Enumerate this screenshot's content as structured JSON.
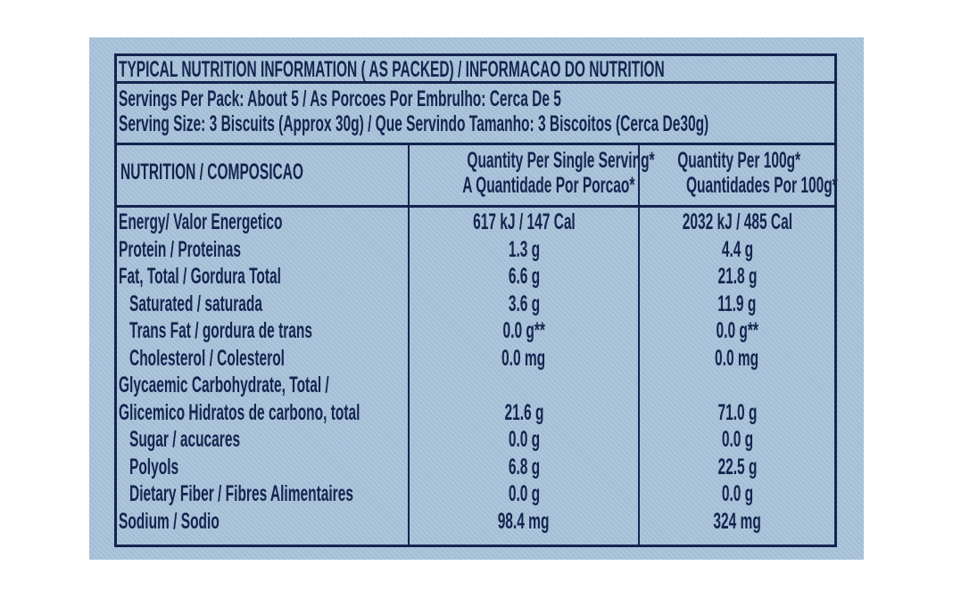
{
  "title": "TYPICAL NUTRITION INFORMATION ( AS PACKED) / INFORMACAO DO NUTRITION",
  "servings_per_pack": "Servings Per Pack:  About 5 / As Porcoes Por Embrulho: Cerca De 5",
  "serving_size": "Serving Size: 3 Biscuits (Approx 30g) / Que Servindo Tamanho: 3 Biscoitos (Cerca De30g)",
  "header": {
    "col1": "NUTRITION / COMPOSICAO",
    "col2_line1": "Quantity Per Single Serving*",
    "col2_line2": "A Quantidade Por Porcao*",
    "col3_line1": "Quantity Per 100g*",
    "col3_line2": "Quantidades Por 100g*"
  },
  "rows": [
    {
      "name": "Energy/ Valor Energetico",
      "serving": "617 kJ / 147 Cal",
      "per100": "2032 kJ / 485 Cal",
      "indent": false
    },
    {
      "name": "Protein / Proteinas",
      "serving": "1.3 g",
      "per100": "4.4 g",
      "indent": false
    },
    {
      "name": "Fat, Total / Gordura Total",
      "serving": "6.6 g",
      "per100": "21.8 g",
      "indent": false
    },
    {
      "name": "Saturated / saturada",
      "serving": "3.6 g",
      "per100": "11.9 g",
      "indent": true
    },
    {
      "name": "Trans Fat / gordura de trans",
      "serving": "0.0 g**",
      "per100": "0.0 g**",
      "indent": true
    },
    {
      "name": "Cholesterol / Colesterol",
      "serving": "0.0 mg",
      "per100": "0.0 mg",
      "indent": true
    },
    {
      "name": "Glycaemic Carbohydrate, Total /",
      "serving": "",
      "per100": "",
      "indent": false
    },
    {
      "name": "Glicemico Hidratos de carbono, total",
      "serving": "21.6 g",
      "per100": "71.0 g",
      "indent": false
    },
    {
      "name": "Sugar / acucares",
      "serving": "0.0 g",
      "per100": "0.0 g",
      "indent": true
    },
    {
      "name": "Polyols",
      "serving": "6.8 g",
      "per100": "22.5 g",
      "indent": true
    },
    {
      "name": "Dietary Fiber / Fibres Alimentaires",
      "serving": "0.0 g",
      "per100": "0.0 g",
      "indent": true
    },
    {
      "name": "Sodium / Sodio",
      "serving": "98.4 mg",
      "per100": "324 mg",
      "indent": false
    }
  ],
  "colors": {
    "background": "#a8c3db",
    "ink": "#14244f"
  }
}
